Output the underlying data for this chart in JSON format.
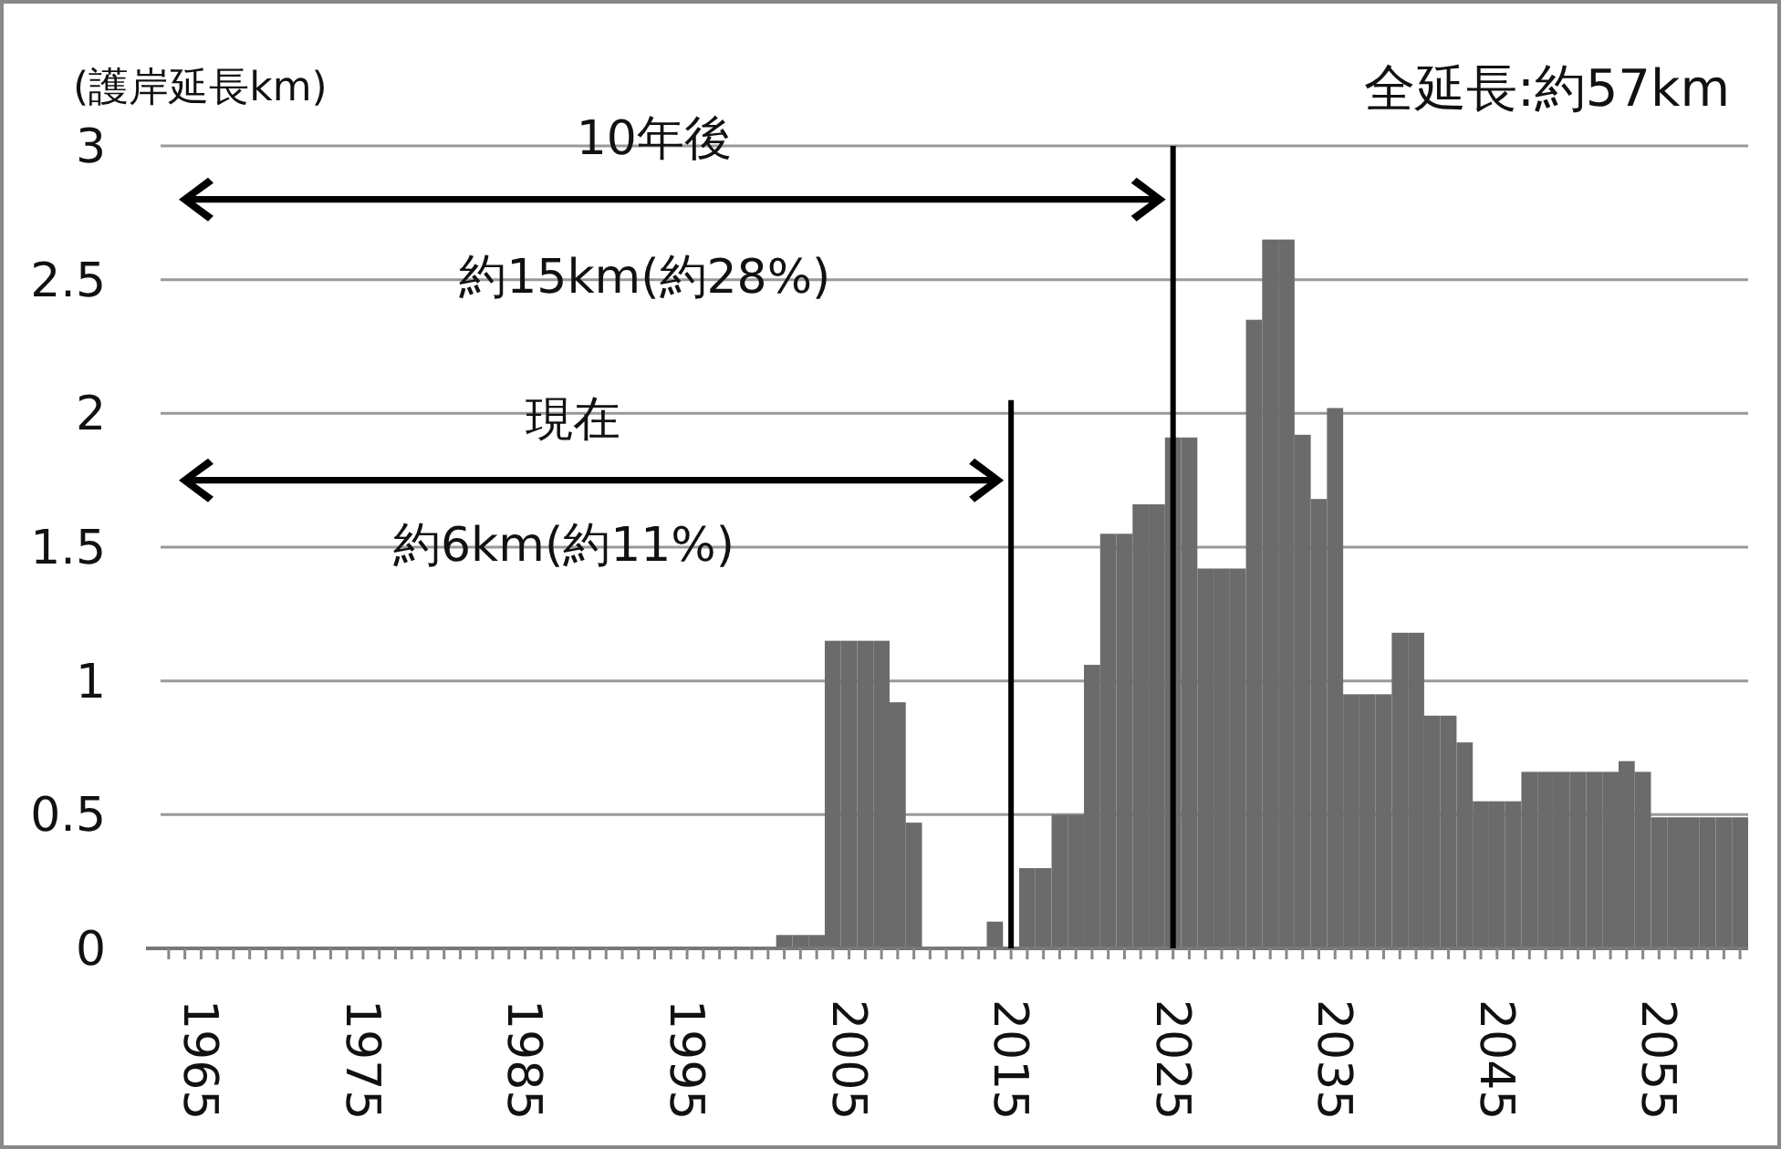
{
  "chart_data": {
    "type": "bar",
    "title": "全延長:約57km",
    "ylabel": "(護岸延長km)",
    "x": [
      1963,
      1964,
      1965,
      1966,
      1967,
      1968,
      1969,
      1970,
      1971,
      1972,
      1973,
      1974,
      1975,
      1976,
      1977,
      1978,
      1979,
      1980,
      1981,
      1982,
      1983,
      1984,
      1985,
      1986,
      1987,
      1988,
      1989,
      1990,
      1991,
      1992,
      1993,
      1994,
      1995,
      1996,
      1997,
      1998,
      1999,
      2000,
      2001,
      2002,
      2003,
      2004,
      2005,
      2006,
      2007,
      2008,
      2009,
      2010,
      2011,
      2012,
      2013,
      2014,
      2015,
      2016,
      2017,
      2018,
      2019,
      2020,
      2021,
      2022,
      2023,
      2024,
      2025,
      2026,
      2027,
      2028,
      2029,
      2030,
      2031,
      2032,
      2033,
      2034,
      2035,
      2036,
      2037,
      2038,
      2039,
      2040,
      2041,
      2042,
      2043,
      2044,
      2045,
      2046,
      2047,
      2048,
      2049,
      2050,
      2051,
      2052,
      2053,
      2054,
      2055,
      2056,
      2057,
      2058,
      2059,
      2060
    ],
    "values": [
      0,
      0,
      0,
      0,
      0,
      0,
      0,
      0,
      0,
      0,
      0,
      0,
      0,
      0,
      0,
      0,
      0,
      0,
      0,
      0,
      0,
      0,
      0,
      0,
      0,
      0,
      0,
      0,
      0,
      0,
      0,
      0,
      0,
      0,
      0,
      0,
      0,
      0,
      0.05,
      0.05,
      0.05,
      1.15,
      1.15,
      1.15,
      1.15,
      0.92,
      0.47,
      0,
      0,
      0,
      0,
      0.1,
      0,
      0.3,
      0.3,
      0.5,
      0.5,
      1.06,
      1.55,
      1.55,
      1.66,
      1.66,
      1.91,
      1.91,
      1.42,
      1.42,
      1.42,
      2.35,
      2.65,
      2.65,
      1.92,
      1.68,
      2.02,
      0.95,
      0.95,
      0.95,
      1.18,
      1.18,
      0.87,
      0.87,
      0.77,
      0.55,
      0.55,
      0.55,
      0.66,
      0.66,
      0.66,
      0.66,
      0.66,
      0.66,
      0.7,
      0.66,
      0.49,
      0.49,
      0.49,
      0.49,
      0.49,
      0.49
    ],
    "color": "#6b6b6b",
    "xlim": [
      1962.5,
      2060.5
    ],
    "xticks": [
      1965,
      1975,
      1985,
      1995,
      2005,
      2015,
      2025,
      2035,
      2045,
      2055
    ],
    "ylim": [
      0,
      3
    ],
    "yticks": [
      0,
      0.5,
      1,
      1.5,
      2,
      2.5,
      3
    ],
    "grid": "y",
    "ref_lines": [
      {
        "axis": "x",
        "value": 2015
      },
      {
        "axis": "x",
        "value": 2025
      }
    ],
    "annotations": [
      "現在",
      "約6km(約11%)",
      "10年後",
      "約15km(約28%)"
    ]
  }
}
